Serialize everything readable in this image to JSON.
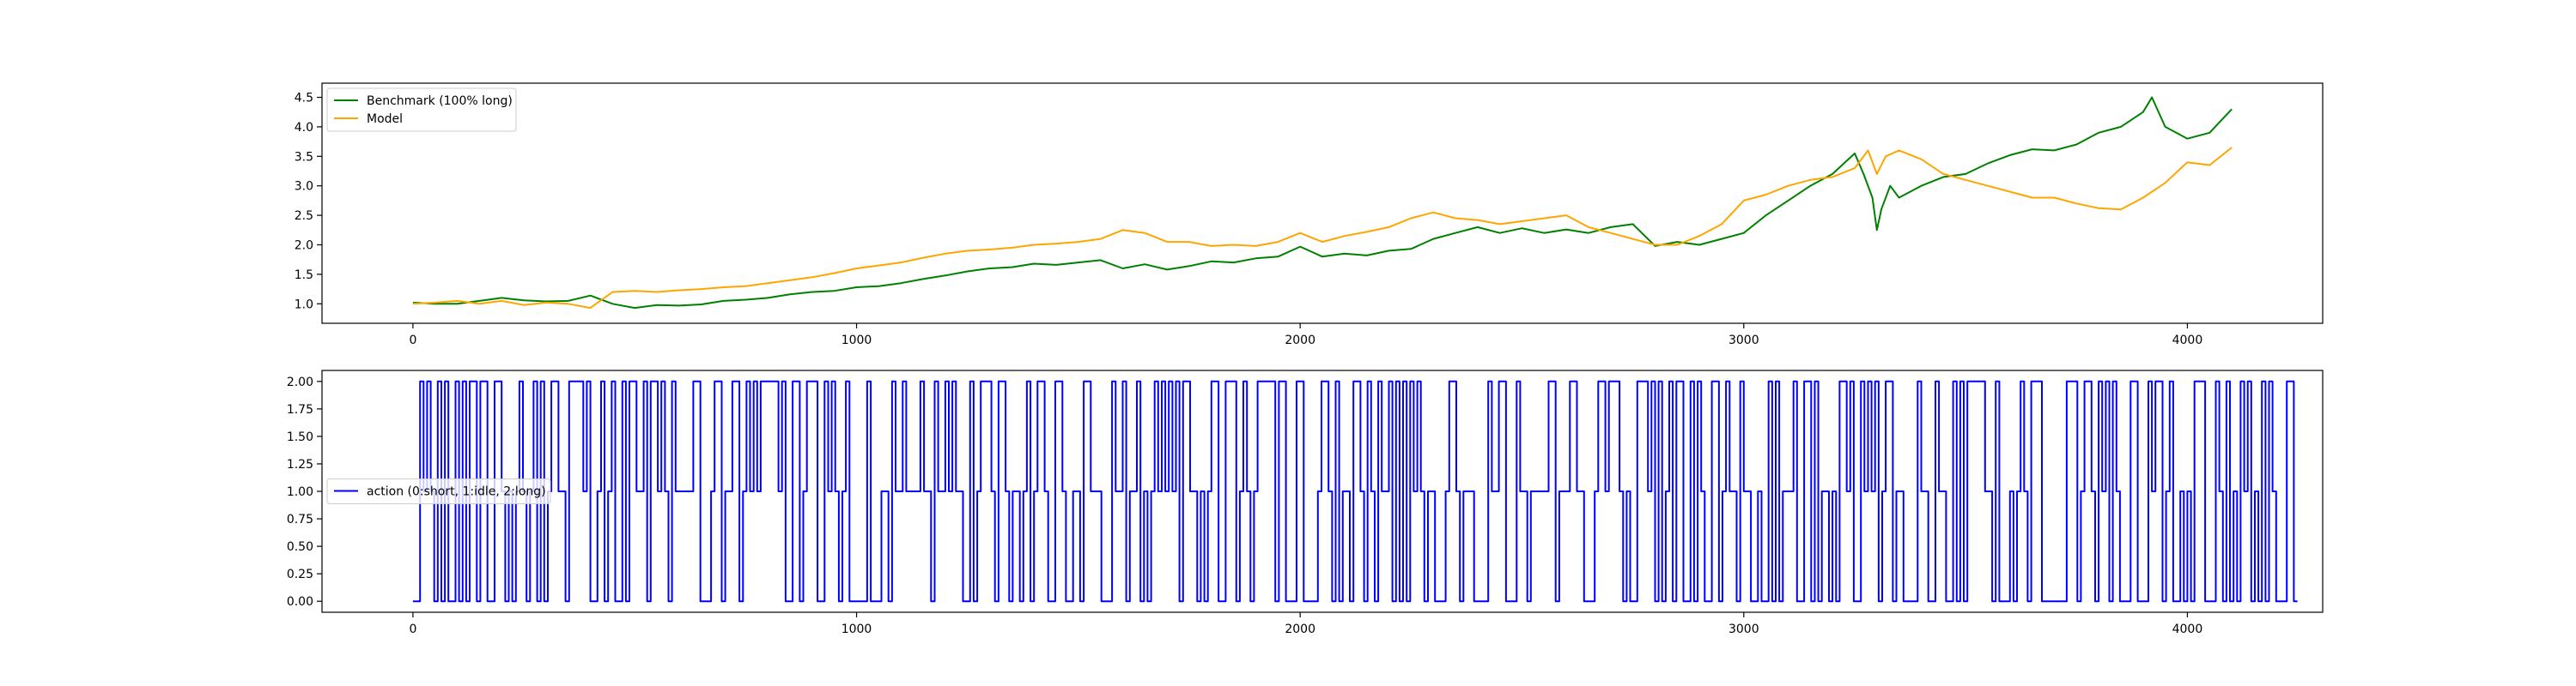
{
  "chart_data": [
    {
      "type": "line",
      "title": "",
      "xlabel": "",
      "ylabel": "",
      "xlim": [
        -205,
        4305
      ],
      "ylim": [
        0.67,
        4.74
      ],
      "xticks": [
        0,
        1000,
        2000,
        3000,
        4000
      ],
      "yticks": [
        1.0,
        1.5,
        2.0,
        2.5,
        3.0,
        3.5,
        4.0,
        4.5
      ],
      "ytick_labels": [
        "1.0",
        "1.5",
        "2.0",
        "2.5",
        "3.0",
        "3.5",
        "4.0",
        "4.5"
      ],
      "grid": false,
      "legend_position": "upper-left",
      "series": [
        {
          "name": "Benchmark (100% long)",
          "color": "#008000",
          "x": [
            0,
            50,
            100,
            150,
            200,
            250,
            300,
            350,
            400,
            450,
            500,
            550,
            600,
            650,
            700,
            750,
            800,
            850,
            900,
            950,
            1000,
            1050,
            1100,
            1150,
            1200,
            1250,
            1300,
            1350,
            1400,
            1450,
            1500,
            1550,
            1600,
            1650,
            1700,
            1750,
            1800,
            1850,
            1900,
            1950,
            2000,
            2050,
            2100,
            2150,
            2200,
            2250,
            2300,
            2350,
            2400,
            2450,
            2500,
            2550,
            2600,
            2650,
            2700,
            2750,
            2800,
            2850,
            2900,
            2950,
            3000,
            3050,
            3100,
            3150,
            3200,
            3250,
            3270,
            3290,
            3300,
            3310,
            3330,
            3350,
            3400,
            3450,
            3500,
            3550,
            3600,
            3650,
            3700,
            3750,
            3800,
            3850,
            3900,
            3920,
            3950,
            4000,
            4050,
            4100
          ],
          "values": [
            1.02,
            1.0,
            1.0,
            1.05,
            1.1,
            1.06,
            1.04,
            1.05,
            1.14,
            1.0,
            0.93,
            0.98,
            0.97,
            0.99,
            1.05,
            1.07,
            1.1,
            1.16,
            1.2,
            1.22,
            1.28,
            1.3,
            1.35,
            1.42,
            1.48,
            1.55,
            1.6,
            1.62,
            1.68,
            1.66,
            1.7,
            1.74,
            1.6,
            1.67,
            1.58,
            1.64,
            1.72,
            1.7,
            1.77,
            1.8,
            1.97,
            1.8,
            1.85,
            1.82,
            1.9,
            1.93,
            2.1,
            2.2,
            2.3,
            2.2,
            2.28,
            2.2,
            2.26,
            2.2,
            2.3,
            2.35,
            1.98,
            2.05,
            2.0,
            2.1,
            2.2,
            2.5,
            2.75,
            3.0,
            3.2,
            3.55,
            3.2,
            2.8,
            2.25,
            2.6,
            3.0,
            2.8,
            3.0,
            3.15,
            3.2,
            3.38,
            3.52,
            3.62,
            3.6,
            3.7,
            3.9,
            4.0,
            4.25,
            4.5,
            4.0,
            3.8,
            3.9,
            4.3
          ]
        },
        {
          "name": "Model",
          "color": "#ffa500",
          "x": [
            0,
            50,
            100,
            150,
            200,
            250,
            300,
            350,
            400,
            450,
            500,
            550,
            600,
            650,
            700,
            750,
            800,
            850,
            900,
            950,
            1000,
            1050,
            1100,
            1150,
            1200,
            1250,
            1300,
            1350,
            1400,
            1450,
            1500,
            1550,
            1600,
            1650,
            1700,
            1750,
            1800,
            1850,
            1900,
            1950,
            2000,
            2050,
            2100,
            2150,
            2200,
            2250,
            2300,
            2350,
            2400,
            2450,
            2500,
            2550,
            2600,
            2650,
            2700,
            2750,
            2800,
            2850,
            2900,
            2950,
            3000,
            3050,
            3100,
            3150,
            3200,
            3250,
            3280,
            3300,
            3320,
            3350,
            3400,
            3450,
            3500,
            3550,
            3600,
            3650,
            3700,
            3750,
            3800,
            3850,
            3900,
            3950,
            4000,
            4050,
            4100
          ],
          "values": [
            1.0,
            1.02,
            1.05,
            1.0,
            1.05,
            0.98,
            1.02,
            1.0,
            0.93,
            1.2,
            1.22,
            1.2,
            1.23,
            1.25,
            1.28,
            1.3,
            1.35,
            1.4,
            1.45,
            1.52,
            1.6,
            1.65,
            1.7,
            1.78,
            1.85,
            1.9,
            1.92,
            1.95,
            2.0,
            2.02,
            2.05,
            2.1,
            2.25,
            2.2,
            2.05,
            2.05,
            1.98,
            2.0,
            1.98,
            2.05,
            2.2,
            2.05,
            2.15,
            2.22,
            2.3,
            2.45,
            2.55,
            2.45,
            2.42,
            2.35,
            2.4,
            2.45,
            2.5,
            2.3,
            2.2,
            2.1,
            2.0,
            2.0,
            2.15,
            2.35,
            2.75,
            2.85,
            3.0,
            3.1,
            3.15,
            3.3,
            3.6,
            3.2,
            3.5,
            3.6,
            3.45,
            3.2,
            3.1,
            3.0,
            2.9,
            2.8,
            2.8,
            2.7,
            2.62,
            2.6,
            2.8,
            3.05,
            3.4,
            3.35,
            3.65
          ]
        }
      ]
    },
    {
      "type": "line",
      "title": "",
      "xlabel": "",
      "ylabel": "",
      "xlim": [
        -205,
        4305
      ],
      "ylim": [
        -0.1,
        2.1
      ],
      "xticks": [
        0,
        1000,
        2000,
        3000,
        4000
      ],
      "yticks": [
        0.0,
        0.25,
        0.5,
        0.75,
        1.0,
        1.25,
        1.5,
        1.75,
        2.0
      ],
      "ytick_labels": [
        "0.00",
        "0.25",
        "0.50",
        "0.75",
        "1.00",
        "1.25",
        "1.50",
        "1.75",
        "2.00"
      ],
      "grid": false,
      "legend_position": "center-left",
      "series": [
        {
          "name": "action (0:short, 1:idle, 2:long)",
          "color": "#0000ff",
          "x_start": 0,
          "x_step": 8,
          "values": [
            0,
            0,
            2,
            1,
            2,
            1,
            0,
            2,
            0,
            2,
            0,
            0,
            2,
            0,
            2,
            0,
            2,
            2,
            0,
            2,
            2,
            0,
            0,
            2,
            2,
            1,
            0,
            1,
            0,
            1,
            2,
            1,
            0,
            1,
            2,
            0,
            2,
            0,
            1,
            2,
            2,
            1,
            1,
            0,
            2,
            2,
            2,
            2,
            1,
            2,
            0,
            0,
            1,
            2,
            0,
            1,
            2,
            0,
            0,
            2,
            0,
            2,
            2,
            1,
            1,
            2,
            0,
            2,
            2,
            1,
            2,
            1,
            0,
            2,
            1,
            1,
            1,
            1,
            1,
            2,
            2,
            0,
            0,
            0,
            1,
            2,
            2,
            0,
            1,
            1,
            2,
            2,
            0,
            1,
            2,
            1,
            2,
            1,
            2,
            2,
            2,
            2,
            2,
            1,
            2,
            0,
            0,
            2,
            2,
            0,
            1,
            2,
            2,
            2,
            0,
            0,
            2,
            1,
            2,
            1,
            0,
            1,
            2,
            0,
            0,
            0,
            0,
            0,
            2,
            0,
            0,
            0,
            1,
            1,
            0,
            2,
            1,
            1,
            2,
            1,
            1,
            1,
            1,
            2,
            1,
            1,
            0,
            2,
            1,
            1,
            2,
            1,
            2,
            1,
            1,
            0,
            0,
            2,
            0,
            1,
            2,
            2,
            2,
            1,
            0,
            2,
            2,
            1,
            0,
            1,
            1,
            0,
            1,
            2,
            0,
            1,
            2,
            2,
            1,
            0,
            0,
            2,
            2,
            1,
            0,
            0,
            1,
            1,
            0,
            2,
            2,
            1,
            1,
            1,
            0,
            0,
            0,
            2,
            1,
            1,
            2,
            0,
            1,
            1,
            2,
            0,
            1,
            0,
            1,
            2,
            1,
            2,
            1,
            2,
            1,
            2,
            0,
            2,
            2,
            1,
            1,
            0,
            1,
            0,
            1,
            2,
            2,
            0,
            0,
            2,
            2,
            2,
            0,
            1,
            2,
            1,
            0,
            1,
            2,
            2,
            2,
            2,
            2,
            0,
            2,
            2,
            0,
            0,
            0,
            2,
            2,
            0,
            0,
            0,
            0,
            1,
            2,
            2,
            1,
            0,
            2,
            0,
            1,
            1,
            0,
            2,
            2,
            1,
            0,
            2,
            1,
            0,
            2,
            1,
            1,
            2,
            0,
            2,
            0,
            2,
            0,
            2,
            1,
            2,
            1,
            0,
            1,
            1,
            0,
            0,
            0,
            1,
            2,
            2,
            1,
            0,
            1,
            1,
            1,
            0,
            0,
            0,
            0,
            2,
            1,
            1,
            2,
            2,
            0,
            0,
            0,
            2,
            1,
            1,
            0,
            1,
            1,
            1,
            1,
            1,
            2,
            2,
            0,
            1,
            1,
            1,
            2,
            2,
            1,
            1,
            0,
            0,
            0,
            1,
            2,
            2,
            1,
            2,
            2,
            2,
            1,
            0,
            1,
            0,
            0,
            2,
            2,
            2,
            1,
            2,
            0,
            2,
            0,
            1,
            2,
            0,
            2,
            2,
            0,
            0,
            2,
            0,
            2,
            1,
            0,
            0,
            2,
            2,
            0,
            1,
            2,
            1,
            1,
            0,
            2,
            1,
            1,
            0,
            0,
            1,
            0,
            0,
            2,
            0,
            2,
            0,
            1,
            1,
            1,
            2,
            0,
            0,
            2,
            2,
            0,
            2,
            0,
            1,
            1,
            0,
            1,
            0,
            2,
            2,
            1,
            2,
            0,
            0,
            2,
            1,
            2,
            1,
            2,
            0,
            1,
            2,
            2,
            0,
            1,
            1,
            0,
            0,
            0,
            0,
            2,
            1,
            1,
            0,
            0,
            2,
            1,
            1,
            0,
            0,
            2,
            0,
            2,
            0,
            2,
            2,
            2,
            2,
            2,
            1,
            1,
            0,
            2,
            0,
            0,
            0,
            1,
            0,
            1,
            2,
            1,
            0,
            2,
            2,
            2,
            0,
            0,
            0,
            0,
            0,
            0,
            0,
            2,
            2,
            2,
            0,
            1,
            2,
            2,
            1,
            0,
            2,
            1,
            2,
            0,
            2,
            1,
            0,
            0,
            0,
            2,
            2,
            0,
            0,
            0,
            2,
            1,
            2,
            2,
            0,
            1,
            2,
            0,
            0,
            1,
            0,
            1,
            0,
            2,
            2,
            2,
            0,
            0,
            0,
            2,
            1,
            0,
            2,
            0,
            1,
            0,
            2,
            1,
            2,
            0,
            1,
            0,
            2,
            0,
            2,
            1,
            0,
            0,
            0,
            2,
            2,
            0
          ]
        }
      ]
    }
  ]
}
